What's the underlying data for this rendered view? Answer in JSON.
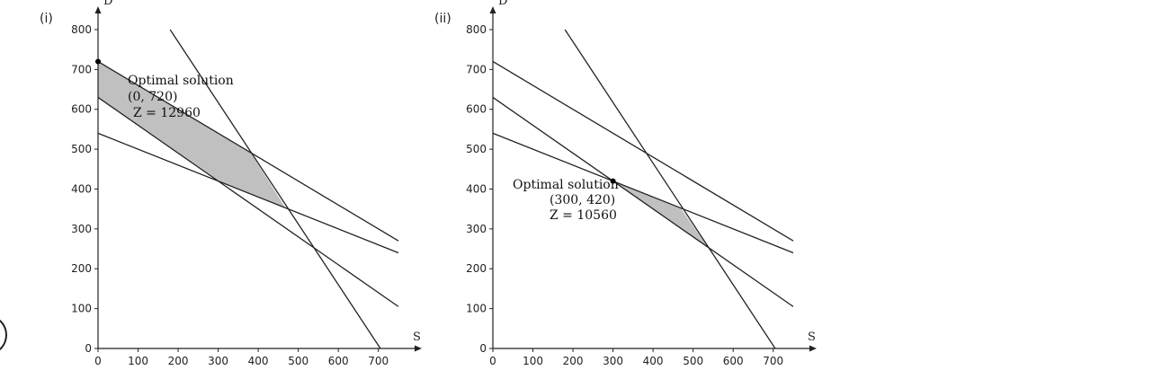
{
  "chart_data": [
    {
      "panel_label": "(i)",
      "type": "line",
      "xlabel": "S",
      "ylabel": "D",
      "xlim": [
        0,
        750
      ],
      "ylim": [
        0,
        800
      ],
      "xticks": [
        0,
        100,
        200,
        300,
        400,
        500,
        600,
        700
      ],
      "yticks": [
        0,
        100,
        200,
        300,
        400,
        500,
        600,
        700,
        800
      ],
      "lines": [
        {
          "from": [
            0,
            720
          ],
          "to": [
            750,
            270
          ]
        },
        {
          "from": [
            0,
            630
          ],
          "to": [
            750,
            105
          ]
        },
        {
          "from": [
            0,
            540
          ],
          "to": [
            750,
            240
          ]
        },
        {
          "from": [
            180,
            800
          ],
          "to": [
            705,
            0
          ]
        }
      ],
      "shaded_region": [
        [
          0,
          720
        ],
        [
          380,
          492
        ],
        [
          470,
          350
        ],
        [
          300,
          420
        ],
        [
          0,
          630
        ]
      ],
      "optimal_point": [
        0,
        720
      ],
      "annotation": [
        "Optimal solution",
        "(0, 720)",
        "Z = 12960"
      ]
    },
    {
      "panel_label": "(ii)",
      "type": "line",
      "xlabel": "S",
      "ylabel": "D",
      "xlim": [
        0,
        750
      ],
      "ylim": [
        0,
        800
      ],
      "xticks": [
        0,
        100,
        200,
        300,
        400,
        500,
        600,
        700
      ],
      "yticks": [
        0,
        100,
        200,
        300,
        400,
        500,
        600,
        700,
        800
      ],
      "lines": [
        {
          "from": [
            0,
            720
          ],
          "to": [
            750,
            270
          ]
        },
        {
          "from": [
            0,
            630
          ],
          "to": [
            750,
            105
          ]
        },
        {
          "from": [
            0,
            540
          ],
          "to": [
            750,
            240
          ]
        },
        {
          "from": [
            180,
            800
          ],
          "to": [
            705,
            0
          ]
        }
      ],
      "shaded_region": [
        [
          300,
          420
        ],
        [
          470,
          350
        ],
        [
          540,
          250
        ]
      ],
      "optimal_point": [
        300,
        420
      ],
      "annotation": [
        "Optimal solution",
        "(300, 420)",
        "Z = 10560"
      ]
    }
  ]
}
